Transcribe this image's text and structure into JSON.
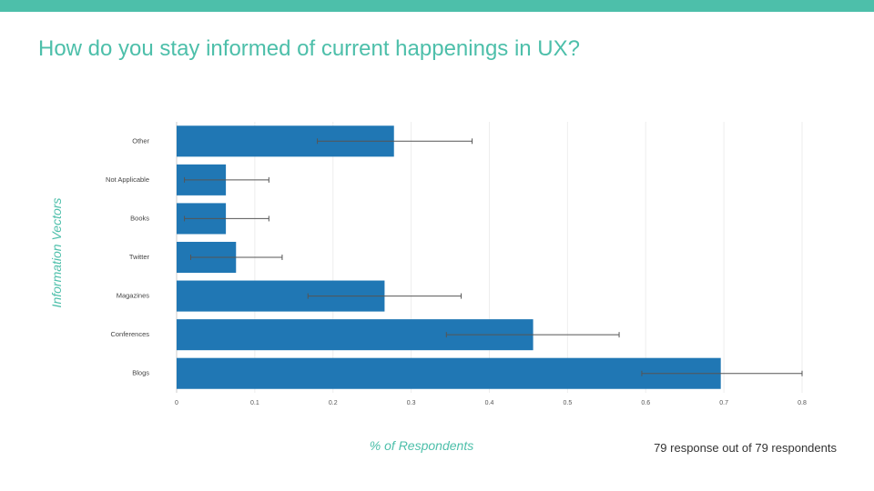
{
  "slide": {
    "title": "How do you stay informed of current happenings in UX?",
    "footnote": "79 response out of 79 respondents"
  },
  "colors": {
    "accent": "#4dbfaa",
    "bar": "#2077b4",
    "error_bar": "#555555",
    "grid": "#eeeeee"
  },
  "chart_data": {
    "type": "bar",
    "orientation": "horizontal",
    "categories": [
      "Other",
      "Not Applicable",
      "Books",
      "Twitter",
      "Magazines",
      "Conferences",
      "Blogs"
    ],
    "values": [
      0.278,
      0.063,
      0.063,
      0.076,
      0.266,
      0.456,
      0.696
    ],
    "error_low": [
      0.18,
      0.01,
      0.01,
      0.018,
      0.168,
      0.345,
      0.595
    ],
    "error_high": [
      0.378,
      0.118,
      0.118,
      0.135,
      0.364,
      0.566,
      0.8
    ],
    "xlabel": "% of Respondents",
    "ylabel": "Information Vectors",
    "xlim": [
      0,
      0.8
    ],
    "xticks": [
      "0",
      "0.1",
      "0.2",
      "0.3",
      "0.4",
      "0.5",
      "0.6",
      "0.7",
      "0.8"
    ],
    "grid": true
  }
}
